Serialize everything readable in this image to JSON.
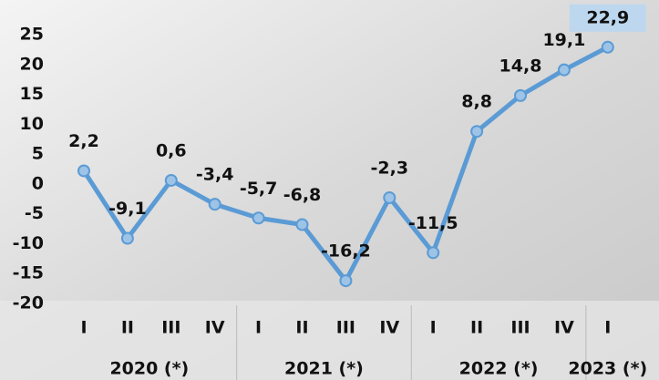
{
  "chart_data": {
    "type": "line",
    "categories": [
      "I",
      "II",
      "III",
      "IV",
      "I",
      "II",
      "III",
      "IV",
      "I",
      "II",
      "III",
      "IV",
      "I"
    ],
    "groups": [
      {
        "label": "2020 (*)",
        "size": 4
      },
      {
        "label": "2021 (*)",
        "size": 4
      },
      {
        "label": "2022 (*)",
        "size": 4
      },
      {
        "label": "2023 (*)",
        "size": 1
      }
    ],
    "values": [
      2.2,
      -9.1,
      0.6,
      -3.4,
      -5.7,
      -6.8,
      -16.2,
      -2.3,
      -11.5,
      8.8,
      14.8,
      19.1,
      22.9
    ],
    "value_labels": [
      "2,2",
      "-9,1",
      "0,6",
      "-3,4",
      "-5,7",
      "-6,8",
      "-16,2",
      "-2,3",
      "-11,5",
      "8,8",
      "14,8",
      "19,1",
      "22,9"
    ],
    "color": "#5b9bd5",
    "ylim": [
      -20,
      25
    ],
    "yticks": [
      -20,
      -15,
      -10,
      -5,
      0,
      5,
      10,
      15,
      20,
      25
    ]
  }
}
